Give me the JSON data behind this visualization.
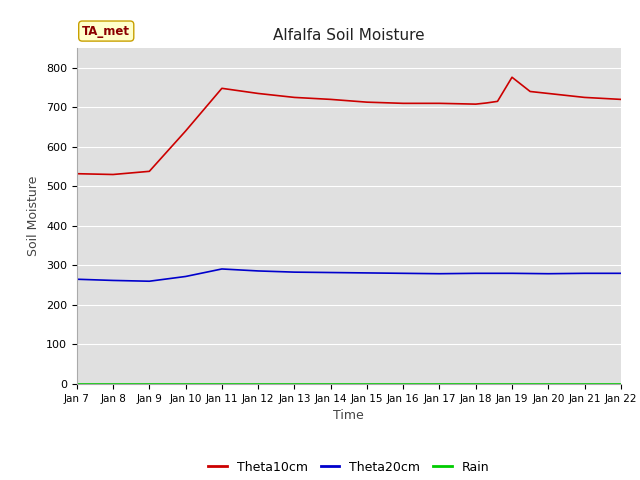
{
  "title": "Alfalfa Soil Moisture",
  "xlabel": "Time",
  "ylabel": "Soil Moisture",
  "annotation": "TA_met",
  "xlim": [
    0,
    15
  ],
  "ylim": [
    0,
    850
  ],
  "yticks": [
    0,
    100,
    200,
    300,
    400,
    500,
    600,
    700,
    800
  ],
  "xtick_labels": [
    "Jan 7",
    "Jan 8",
    "Jan 9",
    "Jan 10",
    "Jan 11",
    "Jan 12",
    "Jan 13",
    "Jan 14",
    "Jan 15",
    "Jan 16",
    "Jan 17",
    "Jan 18",
    "Jan 19",
    "Jan 20",
    "Jan 21",
    "Jan 22"
  ],
  "theta10cm_x": [
    0,
    1,
    2,
    3,
    4,
    5,
    6,
    7,
    8,
    9,
    10,
    11,
    11.3,
    11.6,
    12,
    12.5,
    13,
    14,
    15
  ],
  "theta10cm_y": [
    532,
    530,
    538,
    640,
    748,
    735,
    725,
    720,
    713,
    710,
    710,
    708,
    711,
    715,
    776,
    740,
    735,
    725,
    720
  ],
  "theta20cm_x": [
    0,
    1,
    2,
    3,
    4,
    5,
    6,
    7,
    8,
    9,
    10,
    11,
    12,
    13,
    14,
    15
  ],
  "theta20cm_y": [
    265,
    262,
    260,
    272,
    291,
    286,
    283,
    282,
    281,
    280,
    279,
    280,
    280,
    279,
    280,
    280
  ],
  "rain_x": [
    0,
    1,
    2,
    3,
    4,
    5,
    6,
    7,
    8,
    9,
    10,
    11,
    12,
    13,
    14,
    15
  ],
  "rain_y": [
    1,
    1,
    1,
    1,
    1,
    1,
    1,
    1,
    1,
    1,
    1,
    1,
    1,
    1,
    1,
    1
  ],
  "theta10_color": "#cc0000",
  "theta20_color": "#0000cc",
  "rain_color": "#00cc00",
  "fig_bg_color": "#ffffff",
  "plot_bg_color": "#e0e0e0",
  "legend_labels": [
    "Theta10cm",
    "Theta20cm",
    "Rain"
  ]
}
